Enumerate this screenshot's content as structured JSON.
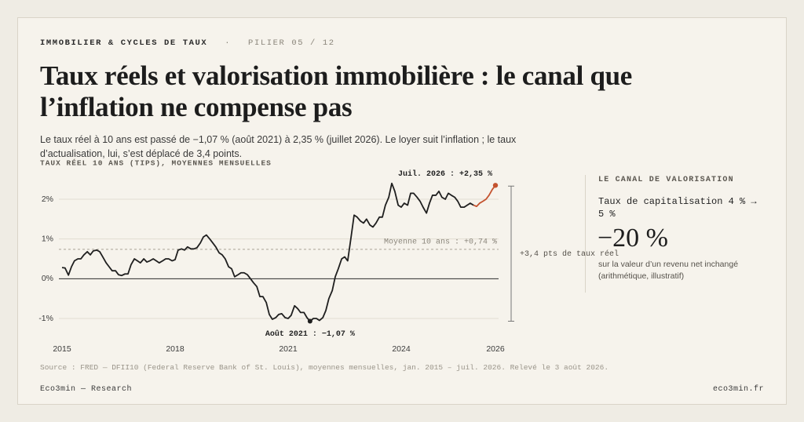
{
  "header": {
    "kicker": "IMMOBILIER & CYCLES DE TAUX",
    "separator": "·",
    "pillar": "PILIER 05 / 12"
  },
  "title": "Taux réels et valorisation immobilière : le canal que l’inflation ne compense pas",
  "subtitle": "Le taux réel à 10 ans est passé de −1,07 % (août 2021) à 2,35 % (juillet 2026). Le loyer suit l’inflation ; le taux d’actualisation, lui, s’est déplacé de 3,4 points.",
  "chart_data": {
    "type": "line",
    "subtitle": "TAUX RÉEL 10 ANS (TIPS), MOYENNES MENSUELLES",
    "series": [
      {
        "color": "#1f1f1f",
        "x": [
          2015,
          2015.08,
          2015.17,
          2015.25,
          2015.33,
          2015.42,
          2015.5,
          2015.58,
          2015.67,
          2015.75,
          2015.83,
          2015.92,
          2016,
          2016.08,
          2016.17,
          2016.25,
          2016.33,
          2016.42,
          2016.5,
          2016.58,
          2016.67,
          2016.75,
          2016.83,
          2016.92,
          2017,
          2017.08,
          2017.17,
          2017.25,
          2017.33,
          2017.42,
          2017.5,
          2017.58,
          2017.67,
          2017.75,
          2017.83,
          2017.92,
          2018,
          2018.08,
          2018.17,
          2018.25,
          2018.33,
          2018.42,
          2018.5,
          2018.58,
          2018.67,
          2018.75,
          2018.83,
          2018.92,
          2019,
          2019.08,
          2019.17,
          2019.25,
          2019.33,
          2019.42,
          2019.5,
          2019.58,
          2019.67,
          2019.75,
          2019.83,
          2019.92,
          2020,
          2020.08,
          2020.17,
          2020.25,
          2020.33,
          2020.42,
          2020.5,
          2020.58,
          2020.67,
          2020.75,
          2020.83,
          2020.92,
          2021,
          2021.08,
          2021.17,
          2021.25,
          2021.33,
          2021.42,
          2021.5,
          2021.58,
          2021.67,
          2021.75,
          2021.83,
          2021.92,
          2022,
          2022.08,
          2022.17,
          2022.25,
          2022.33,
          2022.42,
          2022.5,
          2022.58,
          2022.67,
          2022.75,
          2022.83,
          2022.92,
          2023,
          2023.08,
          2023.17,
          2023.25,
          2023.33,
          2023.42,
          2023.5,
          2023.58,
          2023.67,
          2023.75,
          2023.83,
          2023.92,
          2024,
          2024.08,
          2024.17,
          2024.25,
          2024.33,
          2024.42,
          2024.5,
          2024.58,
          2024.67,
          2024.75,
          2024.83,
          2024.92,
          2025,
          2025.08,
          2025.17,
          2025.25,
          2025.33,
          2025.42,
          2025.5,
          2025.58,
          2025.67,
          2025.75,
          2025.83,
          2025.92
        ],
        "values": [
          0.28,
          0.27,
          0.09,
          0.3,
          0.45,
          0.5,
          0.5,
          0.6,
          0.68,
          0.6,
          0.7,
          0.72,
          0.68,
          0.55,
          0.4,
          0.3,
          0.2,
          0.2,
          0.1,
          0.08,
          0.12,
          0.12,
          0.35,
          0.5,
          0.45,
          0.4,
          0.5,
          0.42,
          0.45,
          0.5,
          0.45,
          0.4,
          0.45,
          0.5,
          0.5,
          0.45,
          0.48,
          0.72,
          0.75,
          0.72,
          0.8,
          0.75,
          0.75,
          0.78,
          0.9,
          1.05,
          1.1,
          1.0,
          0.9,
          0.8,
          0.65,
          0.6,
          0.5,
          0.3,
          0.25,
          0.05,
          0.1,
          0.15,
          0.15,
          0.1,
          0.0,
          -0.1,
          -0.2,
          -0.45,
          -0.45,
          -0.6,
          -0.9,
          -1.02,
          -0.98,
          -0.9,
          -0.88,
          -0.98,
          -1.0,
          -0.92,
          -0.68,
          -0.75,
          -0.85,
          -0.85,
          -0.98,
          -1.07,
          -1.0,
          -1.0,
          -1.05,
          -0.98,
          -0.8,
          -0.5,
          -0.3,
          0.05,
          0.25,
          0.5,
          0.55,
          0.45,
          1.05,
          1.6,
          1.55,
          1.45,
          1.4,
          1.5,
          1.35,
          1.3,
          1.4,
          1.55,
          1.55,
          1.85,
          2.05,
          2.4,
          2.2,
          1.85,
          1.8,
          1.9,
          1.85,
          2.15,
          2.15,
          2.05,
          1.95,
          1.8,
          1.65,
          1.9,
          2.1,
          2.1,
          2.2,
          2.05,
          2.0,
          2.15,
          2.1,
          2.05,
          1.95,
          1.8,
          1.8,
          1.85,
          1.9,
          1.85
        ]
      },
      {
        "color": "#c4532f",
        "x": [
          2025.92,
          2026,
          2026.08,
          2026.17,
          2026.25,
          2026.33,
          2026.42,
          2026.5
        ],
        "values": [
          1.85,
          1.82,
          1.9,
          1.95,
          2.0,
          2.1,
          2.25,
          2.35
        ]
      }
    ],
    "xlim": [
      2015,
      2026.5
    ],
    "xticks": [
      2015,
      2018,
      2021,
      2024,
      {
        "value": 2026.5,
        "label": "2026"
      }
    ],
    "ylim": [
      -1.3,
      2.6
    ],
    "yticks": [
      {
        "value": -1,
        "label": "-1%"
      },
      {
        "value": 0,
        "label": "0%"
      },
      {
        "value": 1,
        "label": "1%"
      },
      {
        "value": 2,
        "label": "2%"
      }
    ],
    "grid": true,
    "annotations": [
      {
        "text": "Juil. 2026 : +2,35 %",
        "x": 2026.5,
        "value": 2.35
      },
      {
        "text": "Août 2021 : −1,07 %",
        "x": 2021.58,
        "value": -1.07
      },
      {
        "text": "Moyenne 10 ans : +0,74 %",
        "value": 0.74
      },
      {
        "text": "+3,4 pts de taux réel",
        "value": 3.4
      }
    ]
  },
  "side_panel": {
    "title": "LE CANAL DE VALORISATION",
    "line": "Taux de capitalisation 4 % → 5 %",
    "figure": "−20 %",
    "note": "sur la valeur d’un revenu net inchangé (arithmétique, illustratif)"
  },
  "source": "Source : FRED — DFII10 (Federal Reserve Bank of St. Louis), moyennes mensuelles, jan. 2015 – juil. 2026. Relevé le 3 août 2026.",
  "footer": {
    "left": "Eco3min — Research",
    "right": "eco3min.fr"
  }
}
